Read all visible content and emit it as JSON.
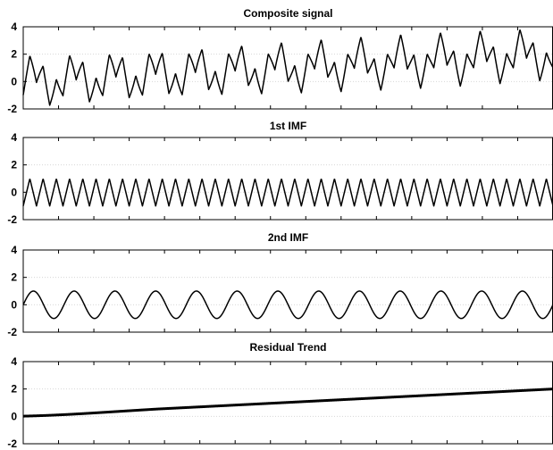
{
  "chart_data": [
    {
      "type": "line",
      "title": "Composite signal",
      "ylim": [
        -2,
        4
      ],
      "yticks": [
        -2,
        0,
        2,
        4
      ],
      "xlim": [
        0,
        10
      ],
      "grid": "y-dotted",
      "series": [
        {
          "components": [
            {
              "kind": "triangle",
              "amplitude": 1,
              "cycles": 40
            },
            {
              "kind": "sine",
              "amplitude": 1,
              "cycles": 13
            },
            {
              "kind": "trend",
              "start": 0,
              "end": 2
            }
          ],
          "color": "#000000",
          "line_width": 1.5
        }
      ]
    },
    {
      "type": "line",
      "title": "1st IMF",
      "ylim": [
        -2,
        4
      ],
      "yticks": [
        -2,
        0,
        2,
        4
      ],
      "xlim": [
        0,
        10
      ],
      "grid": "y-dotted",
      "series": [
        {
          "components": [
            {
              "kind": "triangle",
              "amplitude": 1,
              "cycles": 40
            }
          ],
          "color": "#000000",
          "line_width": 1.5
        }
      ]
    },
    {
      "type": "line",
      "title": "2nd IMF",
      "ylim": [
        -2,
        4
      ],
      "yticks": [
        -2,
        0,
        2,
        4
      ],
      "xlim": [
        0,
        10
      ],
      "grid": "y-dotted",
      "series": [
        {
          "components": [
            {
              "kind": "sine",
              "amplitude": 1,
              "cycles": 13
            }
          ],
          "color": "#000000",
          "line_width": 1.5
        }
      ]
    },
    {
      "type": "line",
      "title": "Residual Trend",
      "ylim": [
        -2,
        4
      ],
      "yticks": [
        -2,
        0,
        2,
        4
      ],
      "xlim": [
        0,
        10
      ],
      "grid": "y-dotted",
      "series": [
        {
          "components": [
            {
              "kind": "trend",
              "start": 0,
              "end": 2
            }
          ],
          "color": "#000000",
          "line_width": 3
        }
      ]
    }
  ],
  "x_tick_count": 15
}
